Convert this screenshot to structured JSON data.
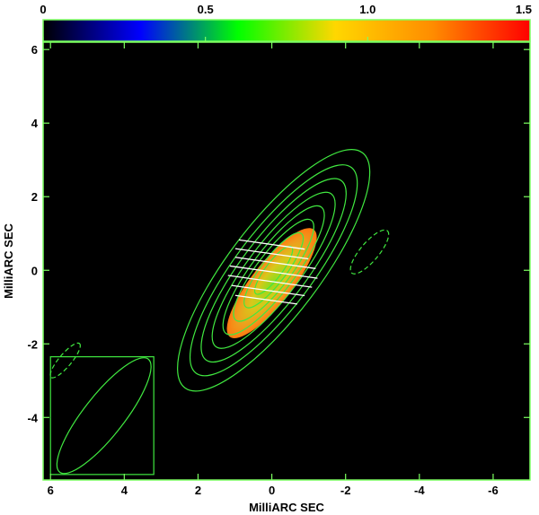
{
  "chart_data": {
    "type": "heatmap",
    "xlabel": "MilliARC SEC",
    "ylabel": "MilliARC SEC",
    "xlim": [
      6.2,
      -7.0
    ],
    "ylim": [
      -5.7,
      6.2
    ],
    "x_ticks": [
      6,
      4,
      2,
      0,
      -2,
      -4,
      -6
    ],
    "y_ticks": [
      6,
      4,
      2,
      0,
      -2,
      -4
    ],
    "x_tick_labels": [
      "6",
      "4",
      "2",
      "0",
      "-2",
      "-4",
      "-6"
    ],
    "y_tick_labels": [
      "6",
      "4",
      "2",
      "0",
      "-2",
      "-4"
    ],
    "colorbar": {
      "range": [
        0,
        1.5
      ],
      "ticks": [
        0,
        0.5,
        1.0,
        1.5
      ],
      "tick_labels": [
        "0",
        "0.5",
        "1.0",
        "1.5"
      ],
      "colors": [
        "#000000",
        "#0000ff",
        "#00ff00",
        "#ffd700",
        "#ff8c00",
        "#ff0000"
      ]
    },
    "colors": {
      "background": "#000000",
      "contour": "#40e840",
      "vectors": "#ffffff",
      "frame": "#7cff60"
    },
    "emission": {
      "center": [
        0.0,
        -0.35
      ],
      "semi_axis_major": 1.85,
      "semi_axis_minor": 0.55,
      "position_angle_deg": 38,
      "peak_value": 0.85,
      "edge_value": 1.15
    },
    "contours": {
      "center": [
        -0.05,
        0.0
      ],
      "position_angle_deg": 37,
      "semi_axes": [
        [
          4.0,
          1.25
        ],
        [
          3.5,
          1.05
        ],
        [
          3.05,
          0.88
        ],
        [
          2.6,
          0.72
        ],
        [
          2.15,
          0.58
        ],
        [
          1.7,
          0.46
        ],
        [
          1.25,
          0.34
        ],
        [
          0.8,
          0.22
        ]
      ],
      "negative": [
        {
          "center": [
            -2.65,
            0.5
          ],
          "a": 0.75,
          "b": 0.25,
          "pa": 40
        },
        {
          "center": [
            5.6,
            -2.45
          ],
          "a": 0.6,
          "b": 0.17,
          "pa": 40
        }
      ]
    },
    "vectors": [
      {
        "x": 0.0,
        "y": 0.7,
        "len": 1.8,
        "angle_deg": 8
      },
      {
        "x": 0.0,
        "y": 0.45,
        "len": 2.0,
        "angle_deg": 8
      },
      {
        "x": -0.1,
        "y": 0.2,
        "len": 2.2,
        "angle_deg": 8
      },
      {
        "x": -0.05,
        "y": -0.05,
        "len": 2.4,
        "angle_deg": 8
      },
      {
        "x": 0.05,
        "y": -0.3,
        "len": 2.3,
        "angle_deg": 8
      },
      {
        "x": 0.1,
        "y": -0.55,
        "len": 2.0,
        "angle_deg": 8
      },
      {
        "x": 0.15,
        "y": -0.8,
        "len": 1.7,
        "angle_deg": 8
      }
    ],
    "beam": {
      "box_x": [
        6.0,
        3.2
      ],
      "box_y": [
        -2.35,
        -5.55
      ],
      "ellipse": {
        "center": [
          4.55,
          -3.95
        ],
        "a": 1.95,
        "b": 0.55,
        "pa": 38
      }
    }
  }
}
